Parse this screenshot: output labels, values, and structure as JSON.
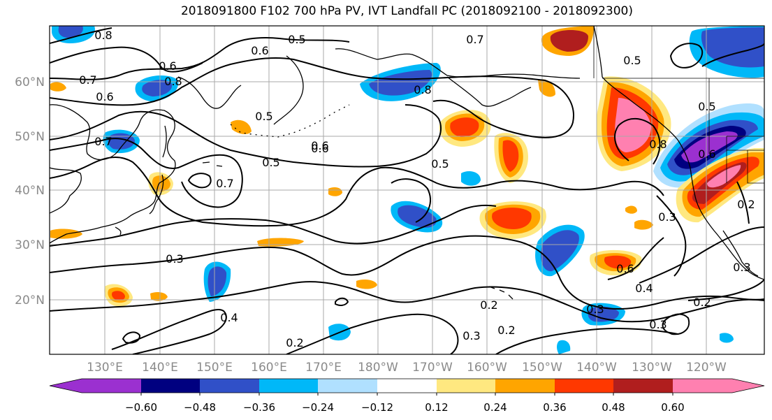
{
  "title": "2018091800 F102 700 hPa PV, IVT Landfall PC (2018092100 - 2018092300)",
  "lat_labels": [
    "20°N",
    "30°N",
    "40°N",
    "50°N",
    "60°N"
  ],
  "lon_labels": [
    "130°E",
    "140°E",
    "150°E",
    "160°E",
    "170°E",
    "180°W",
    "170°W",
    "160°W",
    "150°W",
    "140°W",
    "130°W",
    "120°W"
  ],
  "colorbar": {
    "ticks": [
      "−0.60",
      "−0.48",
      "−0.36",
      "−0.24",
      "−0.12",
      "0.12",
      "0.24",
      "0.36",
      "0.48",
      "0.60"
    ],
    "colors": [
      "#9b30d0",
      "#000080",
      "#3050c8",
      "#00b8f8",
      "#b0e0ff",
      "#ffffff",
      "#ffe880",
      "#ffa500",
      "#ff3800",
      "#b01e1e",
      "#ff80b0"
    ]
  },
  "contour_labels": [
    "0.8",
    "0.5",
    "0.7",
    "0.6",
    "0.7",
    "0.6",
    "0.6",
    "0.5",
    "0.8",
    "0.5",
    "0.5",
    "0.5",
    "0.5",
    "0.6",
    "0.7",
    "0.8",
    "0.6",
    "0.6",
    "0.7",
    "0.3",
    "0.4",
    "0.2",
    "0.2",
    "0.2",
    "0.3",
    "0.3",
    "0.4",
    "0.3",
    "0.3",
    "0.2",
    "0.6",
    "0.3",
    "0.2",
    "0.8"
  ]
}
